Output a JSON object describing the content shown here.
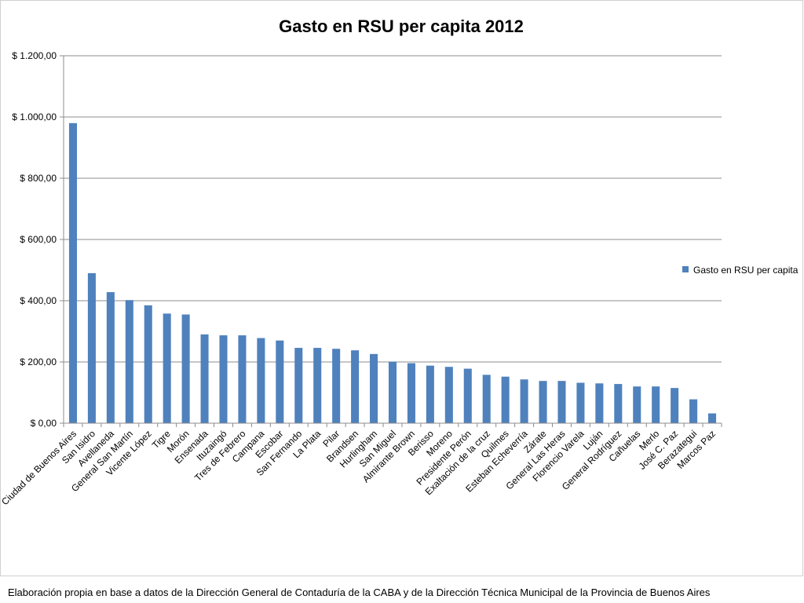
{
  "chart_data": {
    "type": "bar",
    "title": "Gasto en RSU per capita 2012",
    "xlabel": "",
    "ylabel": "",
    "ylim": [
      0,
      1200
    ],
    "yticks": [
      0,
      200,
      400,
      600,
      800,
      1000,
      1200
    ],
    "ytick_labels": [
      "$ 0,00",
      "$ 200,00",
      "$ 400,00",
      "$ 600,00",
      "$ 800,00",
      "$ 1.000,00",
      "$ 1.200,00"
    ],
    "grid": true,
    "legend_position": "right",
    "bar_color": "#4f81bd",
    "grid_color": "#8c8c8c",
    "categories": [
      "Ciudad de Buenos Aires",
      "San Isidro",
      "Avellaneda",
      "General San Martín",
      "Vicente López",
      "Tigre",
      "Morón",
      "Ensenada",
      "Ituzaingó",
      "Tres de Febrero",
      "Campana",
      "Escobar",
      "San Fernando",
      "La Plata",
      "Pilar",
      "Brandsen",
      "Hurlingham",
      "San Miguel",
      "Almirante Brown",
      "Berisso",
      "Moreno",
      "Presidente Perón",
      "Exaltación de la cruz",
      "Quilmes",
      "Esteban Echeverría",
      "Zárate",
      "General Las Heras",
      "Florencio Varela",
      "Luján",
      "General Rodríguez",
      "Cañuelas",
      "Merlo",
      "José C. Paz",
      "Berazategui",
      "Marcos Paz"
    ],
    "series": [
      {
        "name": "Gasto en RSU per capita",
        "values": [
          980,
          490,
          428,
          402,
          385,
          358,
          355,
          290,
          287,
          287,
          278,
          270,
          246,
          246,
          243,
          238,
          226,
          201,
          196,
          188,
          184,
          178,
          158,
          152,
          143,
          138,
          138,
          132,
          130,
          128,
          120,
          120,
          115,
          78,
          32
        ]
      }
    ]
  },
  "footnote": "Elaboración propia en base a datos de la Dirección General de Contaduría de la CABA y de la Dirección Técnica Municipal de la Provincia de Buenos Aires"
}
